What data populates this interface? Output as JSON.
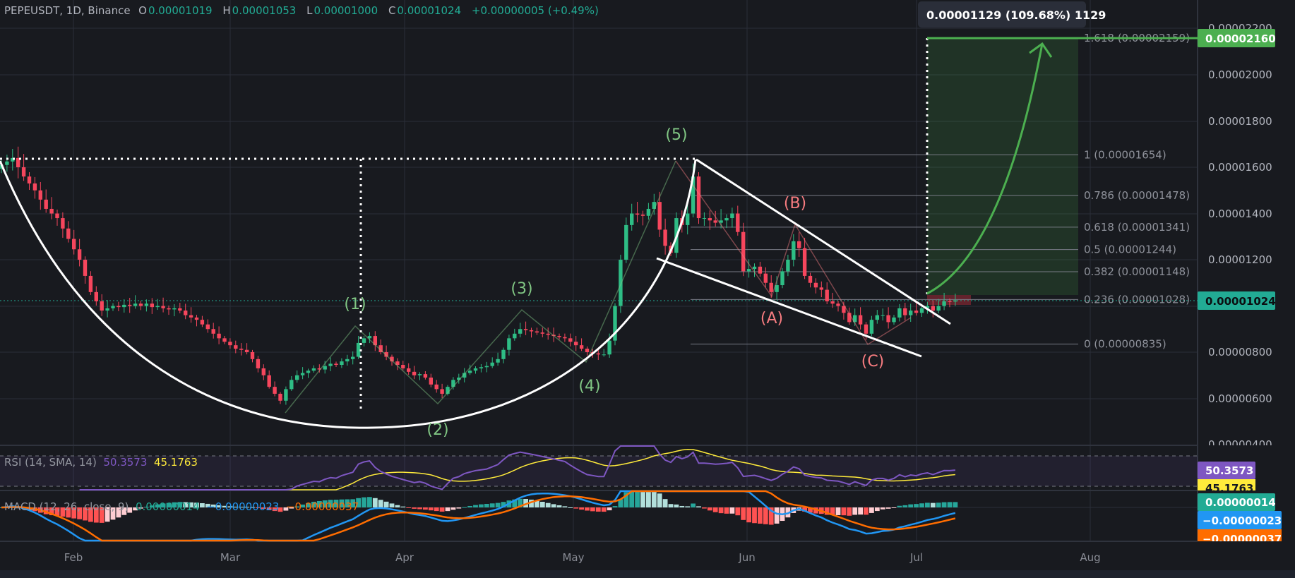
{
  "header": {
    "symbol": "PEPEUSDT, 1D, Binance",
    "o_label": "O",
    "o_value": "0.00001019",
    "h_label": "H",
    "h_value": "0.00001053",
    "l_label": "L",
    "l_value": "0.00001000",
    "c_label": "C",
    "c_value": "0.00001024",
    "change": "+0.00000005 (+0.49%)"
  },
  "colors": {
    "up": "#2ebd85",
    "down": "#f6465d",
    "background": "#181a1f",
    "grid": "#2a2e39",
    "rsi": "#7e57c2",
    "rsi_sma": "#ffeb3b",
    "macd": "#2196f3",
    "signal": "#ff6d00",
    "target": "#4caf50"
  },
  "tooltip": "0.00001129 (109.68%) 1129",
  "price_axis": {
    "ticks": [
      "0.00002200",
      "0.00002000",
      "0.00001800",
      "0.00001600",
      "0.00001400",
      "0.00001200",
      "0.00000800",
      "0.00000600",
      "0.00000400"
    ],
    "target_label": "0.00002160",
    "current_label": "0.00001024"
  },
  "time_axis": [
    "Feb",
    "Mar",
    "Apr",
    "May",
    "Jun",
    "Jul",
    "Aug"
  ],
  "fib_levels": [
    {
      "label": "1.618 (0.00002159)",
      "ratio": 1.618,
      "price": 2.159e-05
    },
    {
      "label": "1 (0.00001654)",
      "ratio": 1,
      "price": 1.654e-05
    },
    {
      "label": "0.786 (0.00001478)",
      "ratio": 0.786,
      "price": 1.478e-05
    },
    {
      "label": "0.618 (0.00001341)",
      "ratio": 0.618,
      "price": 1.341e-05
    },
    {
      "label": "0.5 (0.00001244)",
      "ratio": 0.5,
      "price": 1.244e-05
    },
    {
      "label": "0.382 (0.00001148)",
      "ratio": 0.382,
      "price": 1.148e-05
    },
    {
      "label": "0.236 (0.00001028)",
      "ratio": 0.236,
      "price": 1.028e-05
    },
    {
      "label": "0 (0.00000835)",
      "ratio": 0,
      "price": 8.35e-06
    }
  ],
  "waves": {
    "w1": "(1)",
    "w2": "(2)",
    "w3": "(3)",
    "w4": "(4)",
    "w5": "(5)",
    "wa": "(A)",
    "wb": "(B)",
    "wc": "(C)"
  },
  "rsi": {
    "legend": "RSI (14, SMA, 14)",
    "value": "50.3573",
    "sma": "45.1763"
  },
  "macd": {
    "legend": "MACD (12, 26, close, 9)",
    "histogram": "0.00000014",
    "macd": "−0.00000023",
    "signal": "−0.00000037"
  },
  "chart_data": {
    "type": "candlestick",
    "symbol": "PEPEUSDT",
    "interval": "1D",
    "x_ticks": [
      "Feb",
      "Mar",
      "Apr",
      "May",
      "Jun",
      "Jul",
      "Aug"
    ],
    "ylim": [
      4e-06,
      2.2e-05
    ],
    "grid": true,
    "closes": [
      1.61e-05,
      1.625e-05,
      1.64e-05,
      1.6e-05,
      1.56e-05,
      1.53e-05,
      1.5e-05,
      1.46e-05,
      1.42e-05,
      1.4e-05,
      1.38e-05,
      1.335e-05,
      1.29e-05,
      1.245e-05,
      1.2e-05,
      1.13e-05,
      1.06e-05,
      1.02e-05,
      9.8e-06,
      9.9e-06,
      1e-05,
      9.95e-06,
      1.005e-05,
      1e-05,
      1.01e-05,
      1e-05,
      1.01e-05,
      9.95e-06,
      1e-05,
      9.9e-06,
      9.85e-06,
      9.9e-06,
      9.8e-06,
      9.6e-06,
      9.5e-06,
      9.4e-06,
      9.2e-06,
      9e-06,
      8.8e-06,
      8.6e-06,
      8.45e-06,
      8.3e-06,
      8.15e-06,
      8.1e-06,
      8e-06,
      7.7e-06,
      7.3e-06,
      7e-06,
      6.5e-06,
      6.2e-06,
      5.9e-06,
      6.4e-06,
      6.8e-06,
      7e-06,
      7.1e-06,
      7.2e-06,
      7.3e-06,
      7.25e-06,
      7.4e-06,
      7.5e-06,
      7.45e-06,
      7.6e-06,
      7.7e-06,
      7.8e-06,
      8.4e-06,
      8.6e-06,
      8.7e-06,
      8.3e-06,
      8e-06,
      7.8e-06,
      7.6e-06,
      7.45e-06,
      7.3e-06,
      7.15e-06,
      7e-06,
      7.05e-06,
      6.9e-06,
      6.6e-06,
      6.4e-06,
      6.2e-06,
      6.5e-06,
      6.8e-06,
      6.9e-06,
      7.1e-06,
      7.2e-06,
      7.3e-06,
      7.35e-06,
      7.4e-06,
      7.55e-06,
      7.7e-06,
      8.1e-06,
      8.6e-06,
      8.8e-06,
      9e-06,
      8.95e-06,
      8.9e-06,
      8.85e-06,
      8.8e-06,
      8.75e-06,
      8.7e-06,
      8.65e-06,
      8.6e-06,
      8.45e-06,
      8.3e-06,
      8.15e-06,
      8e-06,
      7.95e-06,
      7.9e-06,
      7.9e-06,
      8.5e-06,
      1e-05,
      1.2e-05,
      1.35e-05,
      1.4e-05,
      1.395e-05,
      1.39e-05,
      1.42e-05,
      1.45e-05,
      1.33e-05,
      1.26e-05,
      1.23e-05,
      1.38e-05,
      1.35e-05,
      1.4e-05,
      1.56e-05,
      1.38e-05,
      1.38e-05,
      1.37e-05,
      1.36e-05,
      1.37e-05,
      1.38e-05,
      1.4e-05,
      1.32e-05,
      1.15e-05,
      1.16e-05,
      1.17e-05,
      1.14e-05,
      1.1e-05,
      1.06e-05,
      1.09e-05,
      1.15e-05,
      1.2e-05,
      1.28e-05,
      1.25e-05,
      1.13e-05,
      1.1e-05,
      1.08e-05,
      1.07e-05,
      1.02e-05,
      1.01e-05,
      1e-05,
      9.7e-06,
      9.3e-06,
      9.6e-06,
      9.2e-06,
      8.8e-06,
      9.4e-06,
      9.6e-06,
      9.6e-06,
      9.3e-06,
      9.5e-06,
      9.9e-06,
      9.6e-06,
      9.8e-06,
      9.7e-06,
      9.9e-06,
      1e-05,
      9.8e-06,
      1e-05,
      1.02e-05,
      1.019e-05,
      1.024e-05
    ],
    "last_candle": {
      "open": 1.019e-05,
      "high": 1.053e-05,
      "low": 1e-05,
      "close": 1.024e-05
    }
  }
}
